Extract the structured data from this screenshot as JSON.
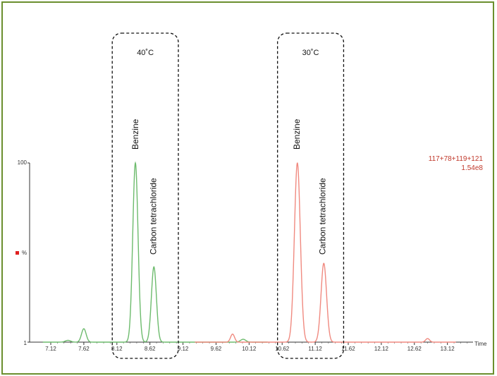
{
  "chart_data": {
    "type": "line",
    "xlabel": "Time",
    "ylabel": "%",
    "y_ticks": [
      "100",
      "1"
    ],
    "xlim": [
      6.8,
      13.55
    ],
    "ylim": [
      0,
      100
    ],
    "x_ticks": [
      "7.12",
      "7.62",
      "8.12",
      "8.62",
      "9.12",
      "9.62",
      "10.12",
      "10.62",
      "11.12",
      "11.62",
      "12.12",
      "12.62",
      "13.12"
    ],
    "annotation": {
      "line1": "117+78+119+121",
      "line2": "1.54e8"
    },
    "regions": [
      {
        "label": "40˚C",
        "x_range": [
          8.05,
          9.05
        ]
      },
      {
        "label": "30˚C",
        "x_range": [
          10.55,
          11.55
        ]
      }
    ],
    "peak_labels": [
      {
        "text": "Benzine",
        "x": 8.4
      },
      {
        "text": "Carbon tetrachloride",
        "x": 8.67
      },
      {
        "text": "Benzine",
        "x": 10.84
      },
      {
        "text": "Carbon tetrachloride",
        "x": 11.23
      }
    ],
    "series": [
      {
        "color": "#6dbb6d",
        "peaks": [
          {
            "x": 7.38,
            "height": 1,
            "width": 0.04
          },
          {
            "x": 7.62,
            "height": 7.5,
            "width": 0.035
          },
          {
            "x": 8.4,
            "height": 100,
            "width": 0.04
          },
          {
            "x": 8.68,
            "height": 42,
            "width": 0.038
          },
          {
            "x": 10.03,
            "height": 1.6,
            "width": 0.04
          }
        ]
      },
      {
        "color": "#f08a80",
        "peaks": [
          {
            "x": 9.87,
            "height": 4.5,
            "width": 0.03
          },
          {
            "x": 10.85,
            "height": 100,
            "width": 0.045
          },
          {
            "x": 11.25,
            "height": 44,
            "width": 0.042
          },
          {
            "x": 12.82,
            "height": 2,
            "width": 0.03
          }
        ]
      }
    ]
  },
  "legend_marker_color": "#e02020"
}
